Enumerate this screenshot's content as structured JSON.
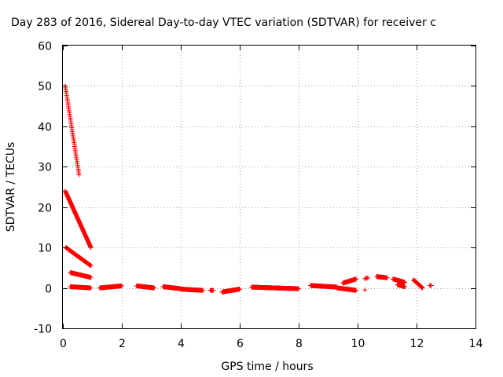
{
  "chart_data": {
    "type": "scatter",
    "title": "Day 283 of 2016, Sidereal Day-to-day VTEC variation (SDTVAR) for receiver c",
    "xlabel": "GPS time / hours",
    "ylabel": "SDTVAR / TECUs",
    "xlim": [
      0,
      14
    ],
    "ylim": [
      -10,
      60
    ],
    "xticks": [
      "0",
      "2",
      "4",
      "6",
      "8",
      "10",
      "12",
      "14"
    ],
    "yticks": [
      "-10",
      "0",
      "10",
      "20",
      "30",
      "40",
      "50",
      "60"
    ],
    "grid": true,
    "marker": "+",
    "marker_color": "#ff0000",
    "segments": [
      {
        "x_start": 0.08,
        "x_end": 0.55,
        "y_start": 50,
        "y_end": 28,
        "step": 0.01
      },
      {
        "x_start": 0.08,
        "x_end": 0.95,
        "y_start": 24,
        "y_end": 10,
        "step": 0.01
      },
      {
        "x_start": 0.1,
        "x_end": 0.95,
        "y_start": 10,
        "y_end": 5.5,
        "step": 0.012
      },
      {
        "x_start": 0.25,
        "x_end": 0.95,
        "y_start": 3.8,
        "y_end": 2.6,
        "step": 0.012
      },
      {
        "x_start": 0.25,
        "x_end": 0.95,
        "y_start": 0.3,
        "y_end": 0.0,
        "step": 0.012
      },
      {
        "x_start": 1.25,
        "x_end": 2.0,
        "y_start": 0.0,
        "y_end": 0.5,
        "step": 0.01
      },
      {
        "x_start": 2.5,
        "x_end": 3.1,
        "y_start": 0.5,
        "y_end": 0.0,
        "step": 0.01
      },
      {
        "x_start": 3.4,
        "x_end": 4.0,
        "y_start": 0.3,
        "y_end": -0.2,
        "step": 0.01
      },
      {
        "x_start": 4.0,
        "x_end": 4.75,
        "y_start": -0.3,
        "y_end": -0.6,
        "step": 0.01
      },
      {
        "x_start": 5.0,
        "x_end": 5.1,
        "y_start": -0.6,
        "y_end": -0.6,
        "step": 0.02
      },
      {
        "x_start": 5.4,
        "x_end": 6.0,
        "y_start": -1.0,
        "y_end": -0.3,
        "step": 0.01
      },
      {
        "x_start": 6.4,
        "x_end": 8.0,
        "y_start": 0.2,
        "y_end": -0.2,
        "step": 0.01
      },
      {
        "x_start": 8.4,
        "x_end": 9.3,
        "y_start": 0.6,
        "y_end": 0.2,
        "step": 0.01
      },
      {
        "x_start": 9.3,
        "x_end": 9.95,
        "y_start": 0.0,
        "y_end": -0.6,
        "step": 0.01
      },
      {
        "x_start": 9.5,
        "x_end": 9.95,
        "y_start": 1.2,
        "y_end": 2.2,
        "step": 0.01
      },
      {
        "x_start": 10.25,
        "x_end": 10.35,
        "y_start": 2.3,
        "y_end": 2.5,
        "step": 0.03
      },
      {
        "x_start": 10.25,
        "x_end": 10.25,
        "y_start": -0.5,
        "y_end": -0.5,
        "step": 0.03
      },
      {
        "x_start": 10.65,
        "x_end": 11.0,
        "y_start": 2.8,
        "y_end": 2.5,
        "step": 0.01
      },
      {
        "x_start": 11.2,
        "x_end": 11.6,
        "y_start": 2.2,
        "y_end": 1.4,
        "step": 0.01
      },
      {
        "x_start": 11.35,
        "x_end": 11.6,
        "y_start": 0.8,
        "y_end": 0.3,
        "step": 0.01
      },
      {
        "x_start": 11.9,
        "x_end": 12.2,
        "y_start": 2.0,
        "y_end": 0.0,
        "step": 0.01
      },
      {
        "x_start": 12.45,
        "x_end": 12.5,
        "y_start": 0.6,
        "y_end": 0.6,
        "step": 0.03
      }
    ]
  }
}
